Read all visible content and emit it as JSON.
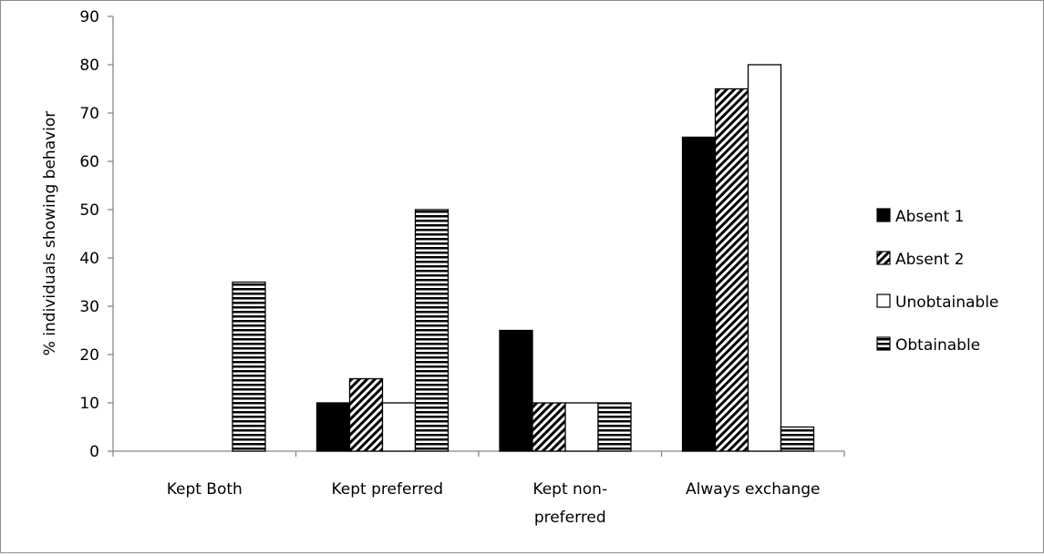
{
  "chart_data": {
    "type": "bar",
    "categories": [
      [
        "Kept Both"
      ],
      [
        "Kept preferred"
      ],
      [
        "Kept non-",
        "preferred"
      ],
      [
        "Always exchange"
      ]
    ],
    "series": [
      {
        "name": "Absent 1",
        "pattern": "solid",
        "values": [
          0,
          10,
          25,
          65
        ]
      },
      {
        "name": "Absent 2",
        "pattern": "diagonal-hatch",
        "values": [
          0,
          15,
          10,
          75
        ]
      },
      {
        "name": "Unobtainable",
        "pattern": "white",
        "values": [
          0,
          10,
          10,
          80
        ]
      },
      {
        "name": "Obtainable",
        "pattern": "horizontal-stripes",
        "values": [
          35,
          50,
          10,
          5
        ]
      }
    ],
    "title": "",
    "xlabel": "",
    "ylabel": "% individuals showing behavior",
    "ylim": [
      0,
      90
    ],
    "yticks": [
      0,
      10,
      20,
      30,
      40,
      50,
      60,
      70,
      80,
      90
    ],
    "grid": false,
    "legend_position": "right",
    "colors": {
      "bar_fill": "#000000",
      "bar_stroke": "#000000",
      "axis": "#888888",
      "background": "#ffffff"
    }
  }
}
